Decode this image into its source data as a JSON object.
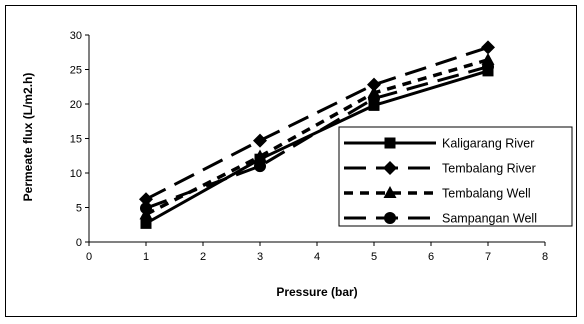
{
  "chart_data": {
    "type": "line",
    "xlabel": "Pressure (bar)",
    "ylabel": "Permeate flux (L/m2.h)",
    "xlim": [
      0,
      8
    ],
    "ylim": [
      0,
      30
    ],
    "x_ticks": [
      "0",
      "1",
      "2",
      "3",
      "4",
      "5",
      "6",
      "7",
      "8"
    ],
    "y_ticks": [
      "0",
      "5",
      "10",
      "15",
      "20",
      "25",
      "30"
    ],
    "x": [
      1,
      3,
      5,
      7
    ],
    "series": [
      {
        "name": "Kaligarang River",
        "values": [
          2.7,
          12.0,
          19.8,
          24.8
        ],
        "marker": "square"
      },
      {
        "name": "Tembalang River",
        "values": [
          6.2,
          14.7,
          22.8,
          28.2
        ],
        "marker": "diamond"
      },
      {
        "name": "Tembalang Well",
        "values": [
          4.0,
          12.4,
          21.6,
          26.4
        ],
        "marker": "triangle"
      },
      {
        "name": "Sampangan Well",
        "values": [
          4.9,
          11.0,
          20.8,
          25.4
        ],
        "marker": "circle"
      }
    ],
    "legend_position": "right",
    "grid": false,
    "colors": {
      "line": "#000000",
      "background": "#ffffff"
    }
  }
}
